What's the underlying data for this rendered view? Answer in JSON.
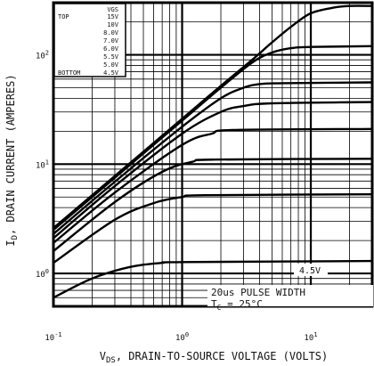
{
  "chart_data": {
    "type": "line",
    "xlabel_main": "V",
    "xlabel_sub": "DS",
    "xlabel_rest": ", DRAIN-TO-SOURCE VOLTAGE (VOLTS)",
    "ylabel_main": "I",
    "ylabel_sub": "D",
    "ylabel_rest": ", DRAIN CURRENT (AMPERES)",
    "x_scale": "log",
    "y_scale": "log",
    "xlim": [
      0.1,
      30
    ],
    "ylim": [
      0.5,
      300
    ],
    "x_ticks": [
      {
        "value": 0.1,
        "base": "10",
        "exp": "-1"
      },
      {
        "value": 1,
        "base": "10",
        "exp": "0"
      },
      {
        "value": 10,
        "base": "10",
        "exp": "1"
      }
    ],
    "y_ticks": [
      {
        "value": 1,
        "base": "10",
        "exp": "0"
      },
      {
        "value": 10,
        "base": "10",
        "exp": "1"
      },
      {
        "value": 100,
        "base": "10",
        "exp": "2"
      }
    ],
    "grid": true,
    "legend": {
      "position": "top-left",
      "header": "VGS",
      "top_label": "TOP",
      "bottom_label": "BOTTOM",
      "entries": [
        "15V",
        "10V",
        "8.0V",
        "7.0V",
        "6.0V",
        "5.5V",
        "5.0V",
        "4.5V"
      ]
    },
    "series": [
      {
        "values": [
          [
            0.1,
            2.6
          ],
          [
            0.3,
            7.8
          ],
          [
            1,
            26
          ],
          [
            2,
            52
          ],
          [
            3.5,
            90
          ],
          [
            5,
            130
          ],
          [
            7,
            180
          ],
          [
            10,
            240
          ],
          [
            15,
            270
          ],
          [
            20,
            280
          ],
          [
            30,
            280
          ]
        ]
      },
      {
        "values": [
          [
            0.1,
            2.5
          ],
          [
            0.3,
            7.5
          ],
          [
            1,
            25
          ],
          [
            2,
            50
          ],
          [
            3.5,
            85
          ],
          [
            5,
            105
          ],
          [
            7,
            115
          ],
          [
            10,
            118
          ],
          [
            30,
            120
          ]
        ]
      },
      {
        "values": [
          [
            0.1,
            2.3
          ],
          [
            0.3,
            6.9
          ],
          [
            1,
            22
          ],
          [
            2,
            40
          ],
          [
            3,
            50
          ],
          [
            4,
            54
          ],
          [
            6,
            55
          ],
          [
            30,
            56
          ]
        ]
      },
      {
        "values": [
          [
            0.1,
            2.1
          ],
          [
            0.3,
            6.3
          ],
          [
            1,
            19
          ],
          [
            2,
            30
          ],
          [
            3,
            34
          ],
          [
            5,
            36
          ],
          [
            30,
            37
          ]
        ]
      },
      {
        "values": [
          [
            0.1,
            1.9
          ],
          [
            0.3,
            5.5
          ],
          [
            1,
            15
          ],
          [
            1.7,
            19
          ],
          [
            2.5,
            20.5
          ],
          [
            30,
            21
          ]
        ]
      },
      {
        "values": [
          [
            0.1,
            1.6
          ],
          [
            0.3,
            4.5
          ],
          [
            0.7,
            8.5
          ],
          [
            1.2,
            10.5
          ],
          [
            1.8,
            11
          ],
          [
            30,
            11.2
          ]
        ]
      },
      {
        "values": [
          [
            0.1,
            1.25
          ],
          [
            0.3,
            3.1
          ],
          [
            0.6,
            4.4
          ],
          [
            1,
            5
          ],
          [
            1.5,
            5.2
          ],
          [
            30,
            5.3
          ]
        ]
      },
      {
        "values": [
          [
            0.1,
            0.6
          ],
          [
            0.2,
            0.9
          ],
          [
            0.4,
            1.15
          ],
          [
            0.7,
            1.25
          ],
          [
            1,
            1.27
          ],
          [
            30,
            1.3
          ]
        ]
      }
    ],
    "annotations": {
      "curve_label": "4.5V",
      "pulse_text": "20us PULSE WIDTH",
      "temp_main": "T",
      "temp_sub": "C",
      "temp_rest": " = 25°C"
    }
  }
}
